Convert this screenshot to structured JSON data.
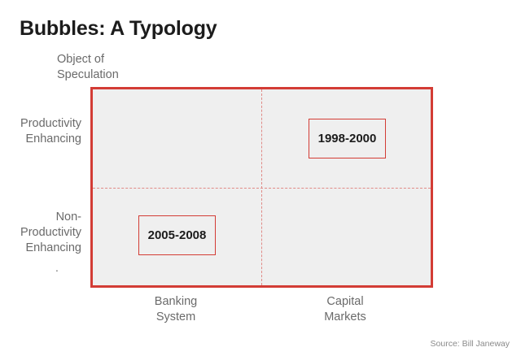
{
  "title": "Bubbles: A Typology",
  "axis_note": {
    "line1": "Object of",
    "line2": "Speculation"
  },
  "rows": {
    "top": {
      "line1": "Productivity",
      "line2": "Enhancing"
    },
    "bottom": {
      "line1": "Non-",
      "line2": "Productivity",
      "line3": "Enhancing"
    },
    "stray_mark": "."
  },
  "columns": {
    "left": {
      "line1": "Banking",
      "line2": "System"
    },
    "right": {
      "line1": "Capital",
      "line2": "Markets"
    }
  },
  "quadrants": {
    "top_right": "1998-2000",
    "bottom_left": "2005-2008"
  },
  "source": "Source: Bill Janeway",
  "colors": {
    "accent": "#d33c35",
    "dashed": "#e08a86",
    "grid_fill": "#efefef",
    "label_text": "#6a6a6a",
    "title_text": "#1c1c1c"
  }
}
